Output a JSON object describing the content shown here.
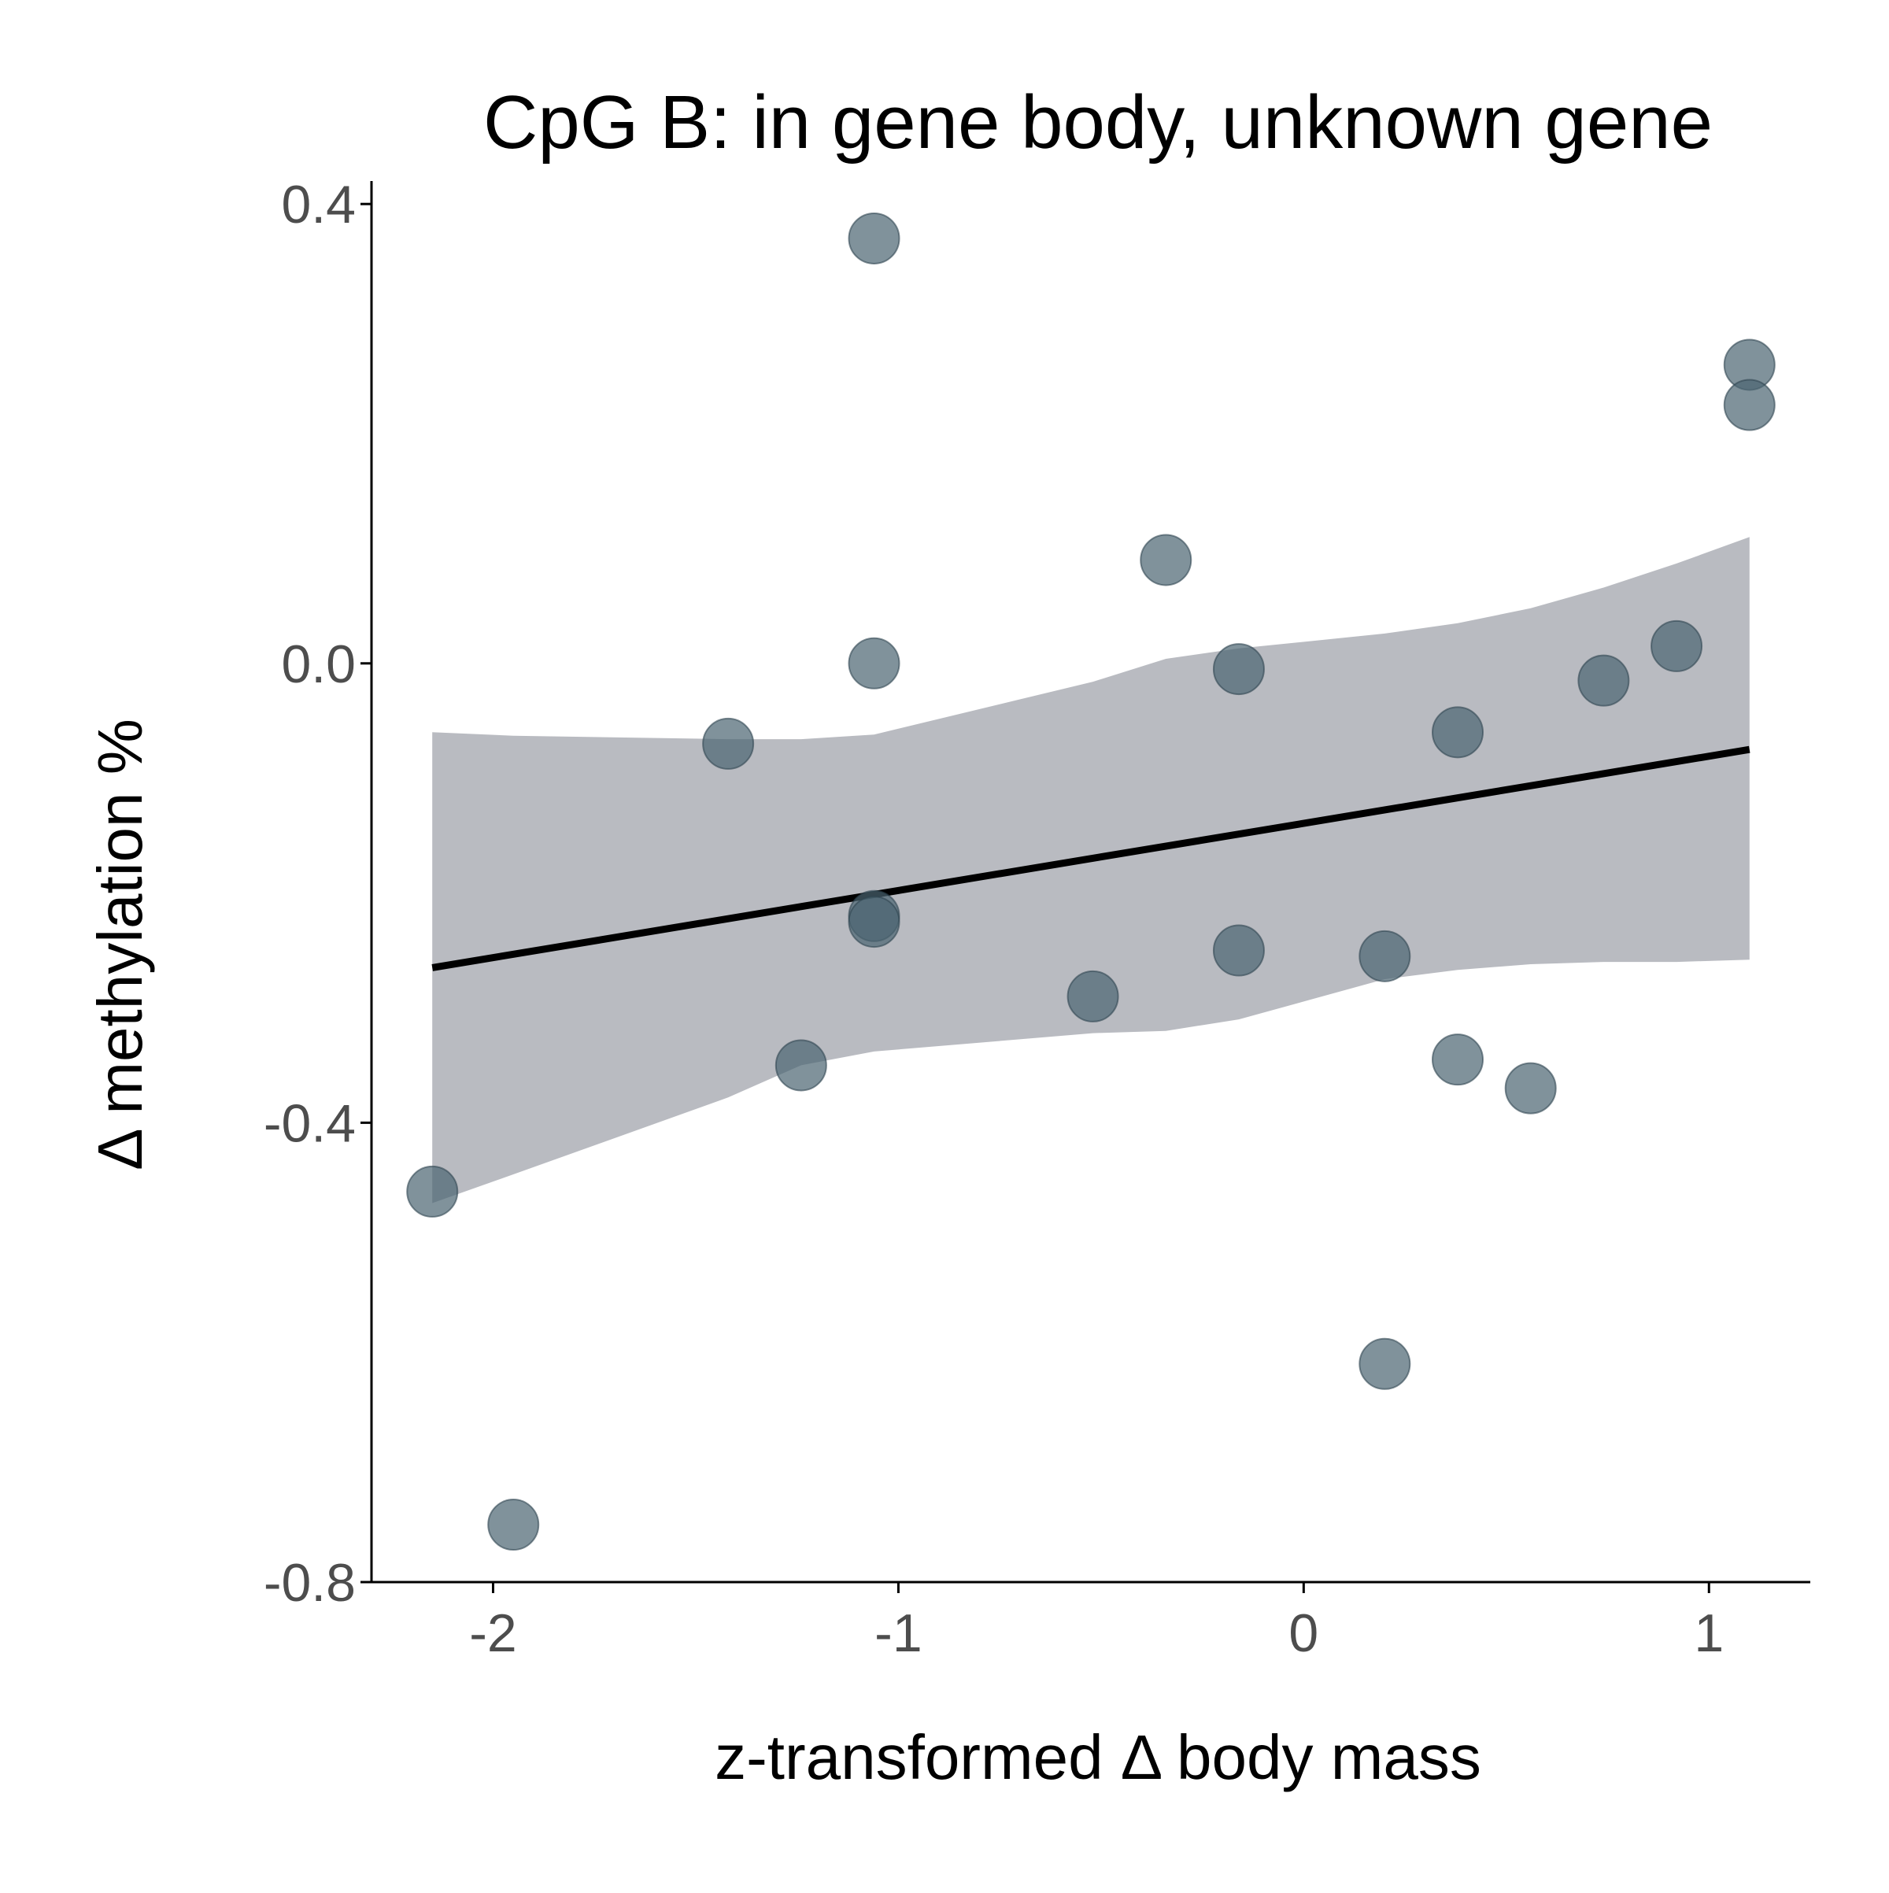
{
  "chart_data": {
    "type": "scatter",
    "title": "CpG B: in gene body, unknown gene",
    "xlabel": "z-transformed Δ body mass",
    "ylabel": "Δ methylation %",
    "xlim": [
      -2.3,
      1.25
    ],
    "ylim": [
      -0.8,
      0.42
    ],
    "x_ticks": [
      -2,
      -1,
      0,
      1
    ],
    "x_tick_labels": [
      "-2",
      "-1",
      "0",
      "1"
    ],
    "y_ticks": [
      -0.8,
      -0.4,
      0.0,
      0.4
    ],
    "y_tick_labels": [
      "-0.8",
      "-0.4",
      "0.0",
      "0.4"
    ],
    "grid": false,
    "legend": "none",
    "colors": {
      "points": "#4a6470",
      "ribbon": "#b9bbc1",
      "line": "#000000",
      "axis": "#000000",
      "tick_text": "#4d4d4d"
    },
    "points": [
      {
        "x": -2.15,
        "y": -0.46
      },
      {
        "x": -1.95,
        "y": -0.75
      },
      {
        "x": -1.42,
        "y": -0.07
      },
      {
        "x": -1.24,
        "y": -0.35
      },
      {
        "x": -1.06,
        "y": 0.37
      },
      {
        "x": -1.06,
        "y": 0.0
      },
      {
        "x": -1.06,
        "y": -0.22
      },
      {
        "x": -1.06,
        "y": -0.225
      },
      {
        "x": -0.52,
        "y": -0.29
      },
      {
        "x": -0.34,
        "y": 0.09
      },
      {
        "x": -0.16,
        "y": -0.005
      },
      {
        "x": -0.16,
        "y": -0.25
      },
      {
        "x": 0.2,
        "y": -0.255
      },
      {
        "x": 0.2,
        "y": -0.61
      },
      {
        "x": 0.38,
        "y": -0.06
      },
      {
        "x": 0.38,
        "y": -0.345
      },
      {
        "x": 0.56,
        "y": -0.37
      },
      {
        "x": 0.74,
        "y": -0.015
      },
      {
        "x": 0.92,
        "y": 0.015
      },
      {
        "x": 1.1,
        "y": 0.26
      },
      {
        "x": 1.1,
        "y": 0.225
      }
    ],
    "fit_line": {
      "x": [
        -2.15,
        1.1
      ],
      "y": [
        -0.265,
        -0.075
      ]
    },
    "confidence_band": {
      "x": [
        -2.15,
        -1.95,
        -1.42,
        -1.24,
        -1.06,
        -0.52,
        -0.34,
        -0.16,
        0.2,
        0.38,
        0.56,
        0.74,
        0.92,
        1.1
      ],
      "upper": [
        -0.06,
        -0.063,
        -0.066,
        -0.066,
        -0.062,
        -0.016,
        0.004,
        0.013,
        0.026,
        0.035,
        0.048,
        0.066,
        0.087,
        0.11
      ],
      "lower": [
        -0.47,
        -0.445,
        -0.378,
        -0.35,
        -0.338,
        -0.322,
        -0.32,
        -0.31,
        -0.275,
        -0.267,
        -0.262,
        -0.26,
        -0.26,
        -0.258
      ]
    }
  }
}
